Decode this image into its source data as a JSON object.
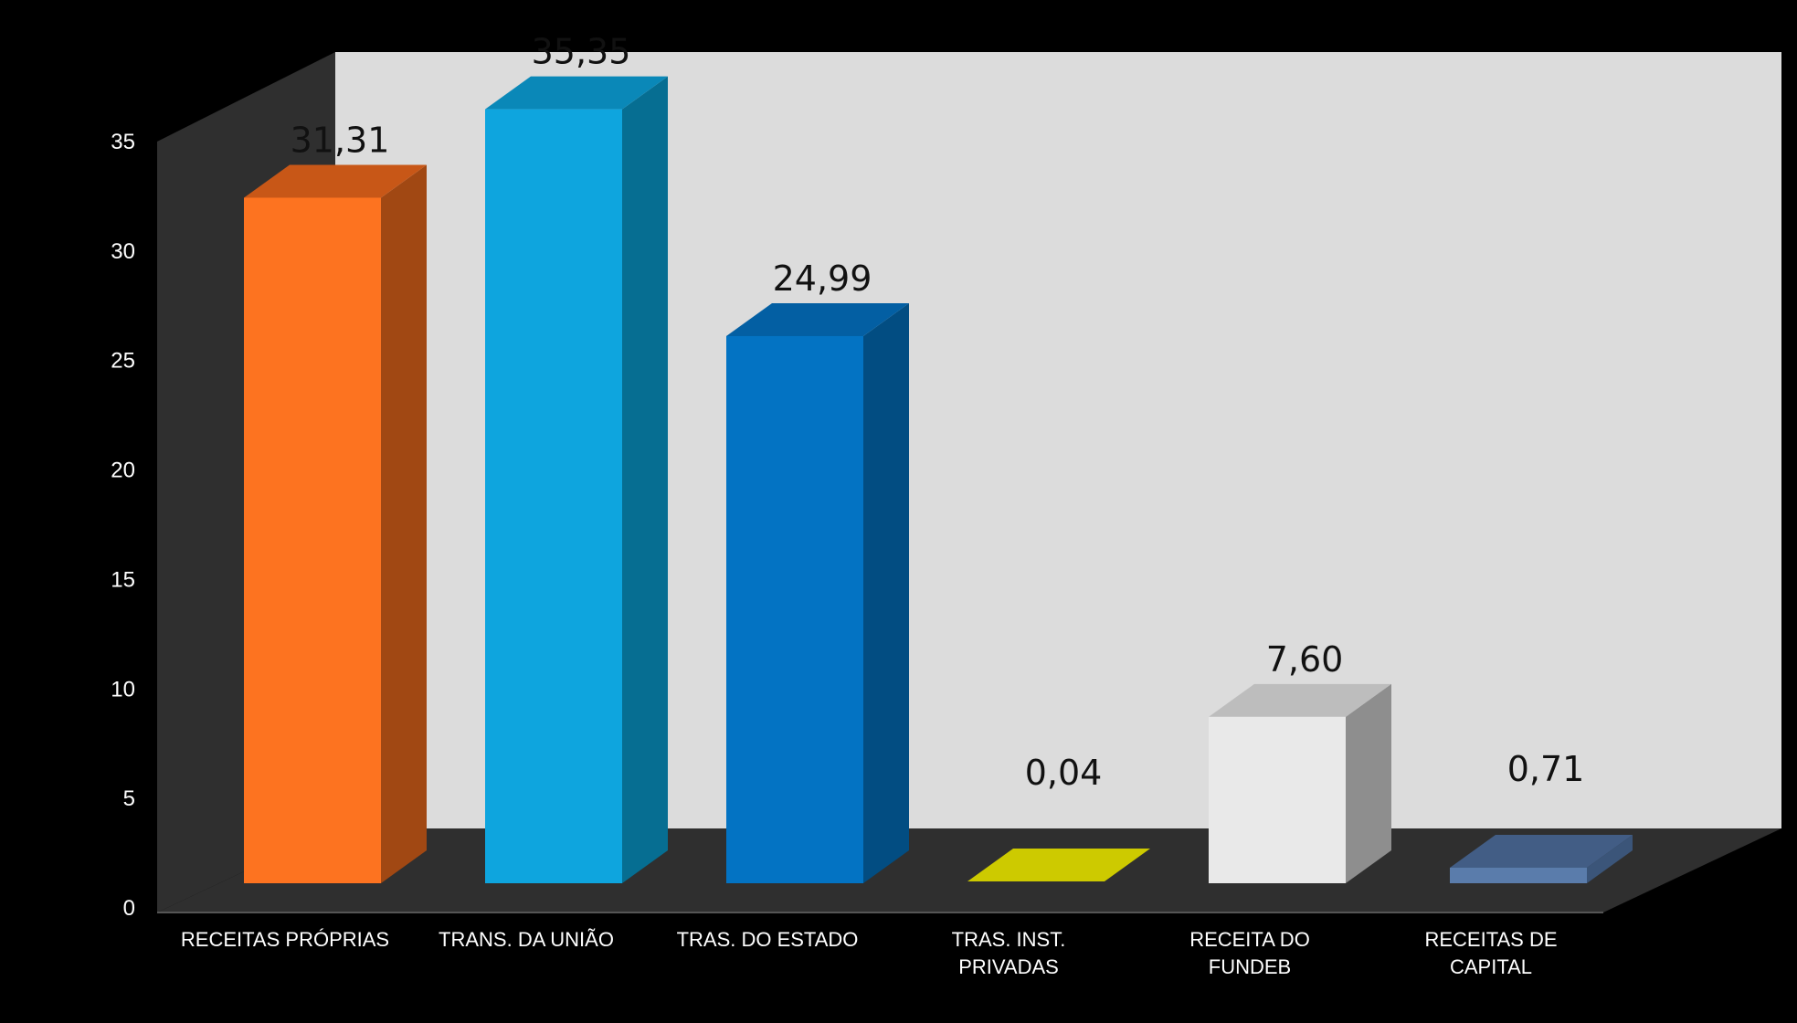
{
  "chart_data": {
    "type": "bar",
    "categories": [
      [
        "RECEITAS PRÓPRIAS"
      ],
      [
        "TRANS. DA UNIÃO"
      ],
      [
        "TRAS. DO ESTADO"
      ],
      [
        "TRAS. INST.",
        "PRIVADAS"
      ],
      [
        "RECEITA DO",
        "FUNDEB"
      ],
      [
        "RECEITAS DE",
        "CAPITAL"
      ]
    ],
    "values": [
      31.31,
      35.35,
      24.99,
      0.04,
      7.6,
      0.71
    ],
    "data_labels": [
      "31,31",
      "35,35",
      "24,99",
      "0,04",
      "7,60",
      "0,71"
    ],
    "title": "",
    "xlabel": "",
    "ylabel": "",
    "ylim": [
      0,
      35
    ],
    "yticks": [
      "0",
      "5",
      "10",
      "15",
      "20",
      "25",
      "30",
      "35"
    ],
    "grid": false,
    "legend": "none",
    "bar_colors": [
      {
        "front": "#fd7320",
        "side": "#a14813",
        "top": "#c85717"
      },
      {
        "front": "#0ea5de",
        "side": "#066e92",
        "top": "#0a88b8"
      },
      {
        "front": "#0373c3",
        "side": "#024d82",
        "top": "#035fa3"
      },
      {
        "front": "#cdca00",
        "side": "#8f8c00",
        "top": "#cdca00"
      },
      {
        "front": "#e9e9e9",
        "side": "#8e8e8e",
        "top": "#bdbdbd"
      },
      {
        "front": "#5a7cab",
        "side": "#3b5579",
        "top": "#425d85"
      }
    ]
  },
  "colors": {
    "background": "#000000",
    "back_wall": "#dcdcdc",
    "side_wall": "#2f2f2f",
    "floor": "#2f2f2f",
    "axis_text": "#ffffff",
    "data_label_text": "#111111"
  }
}
